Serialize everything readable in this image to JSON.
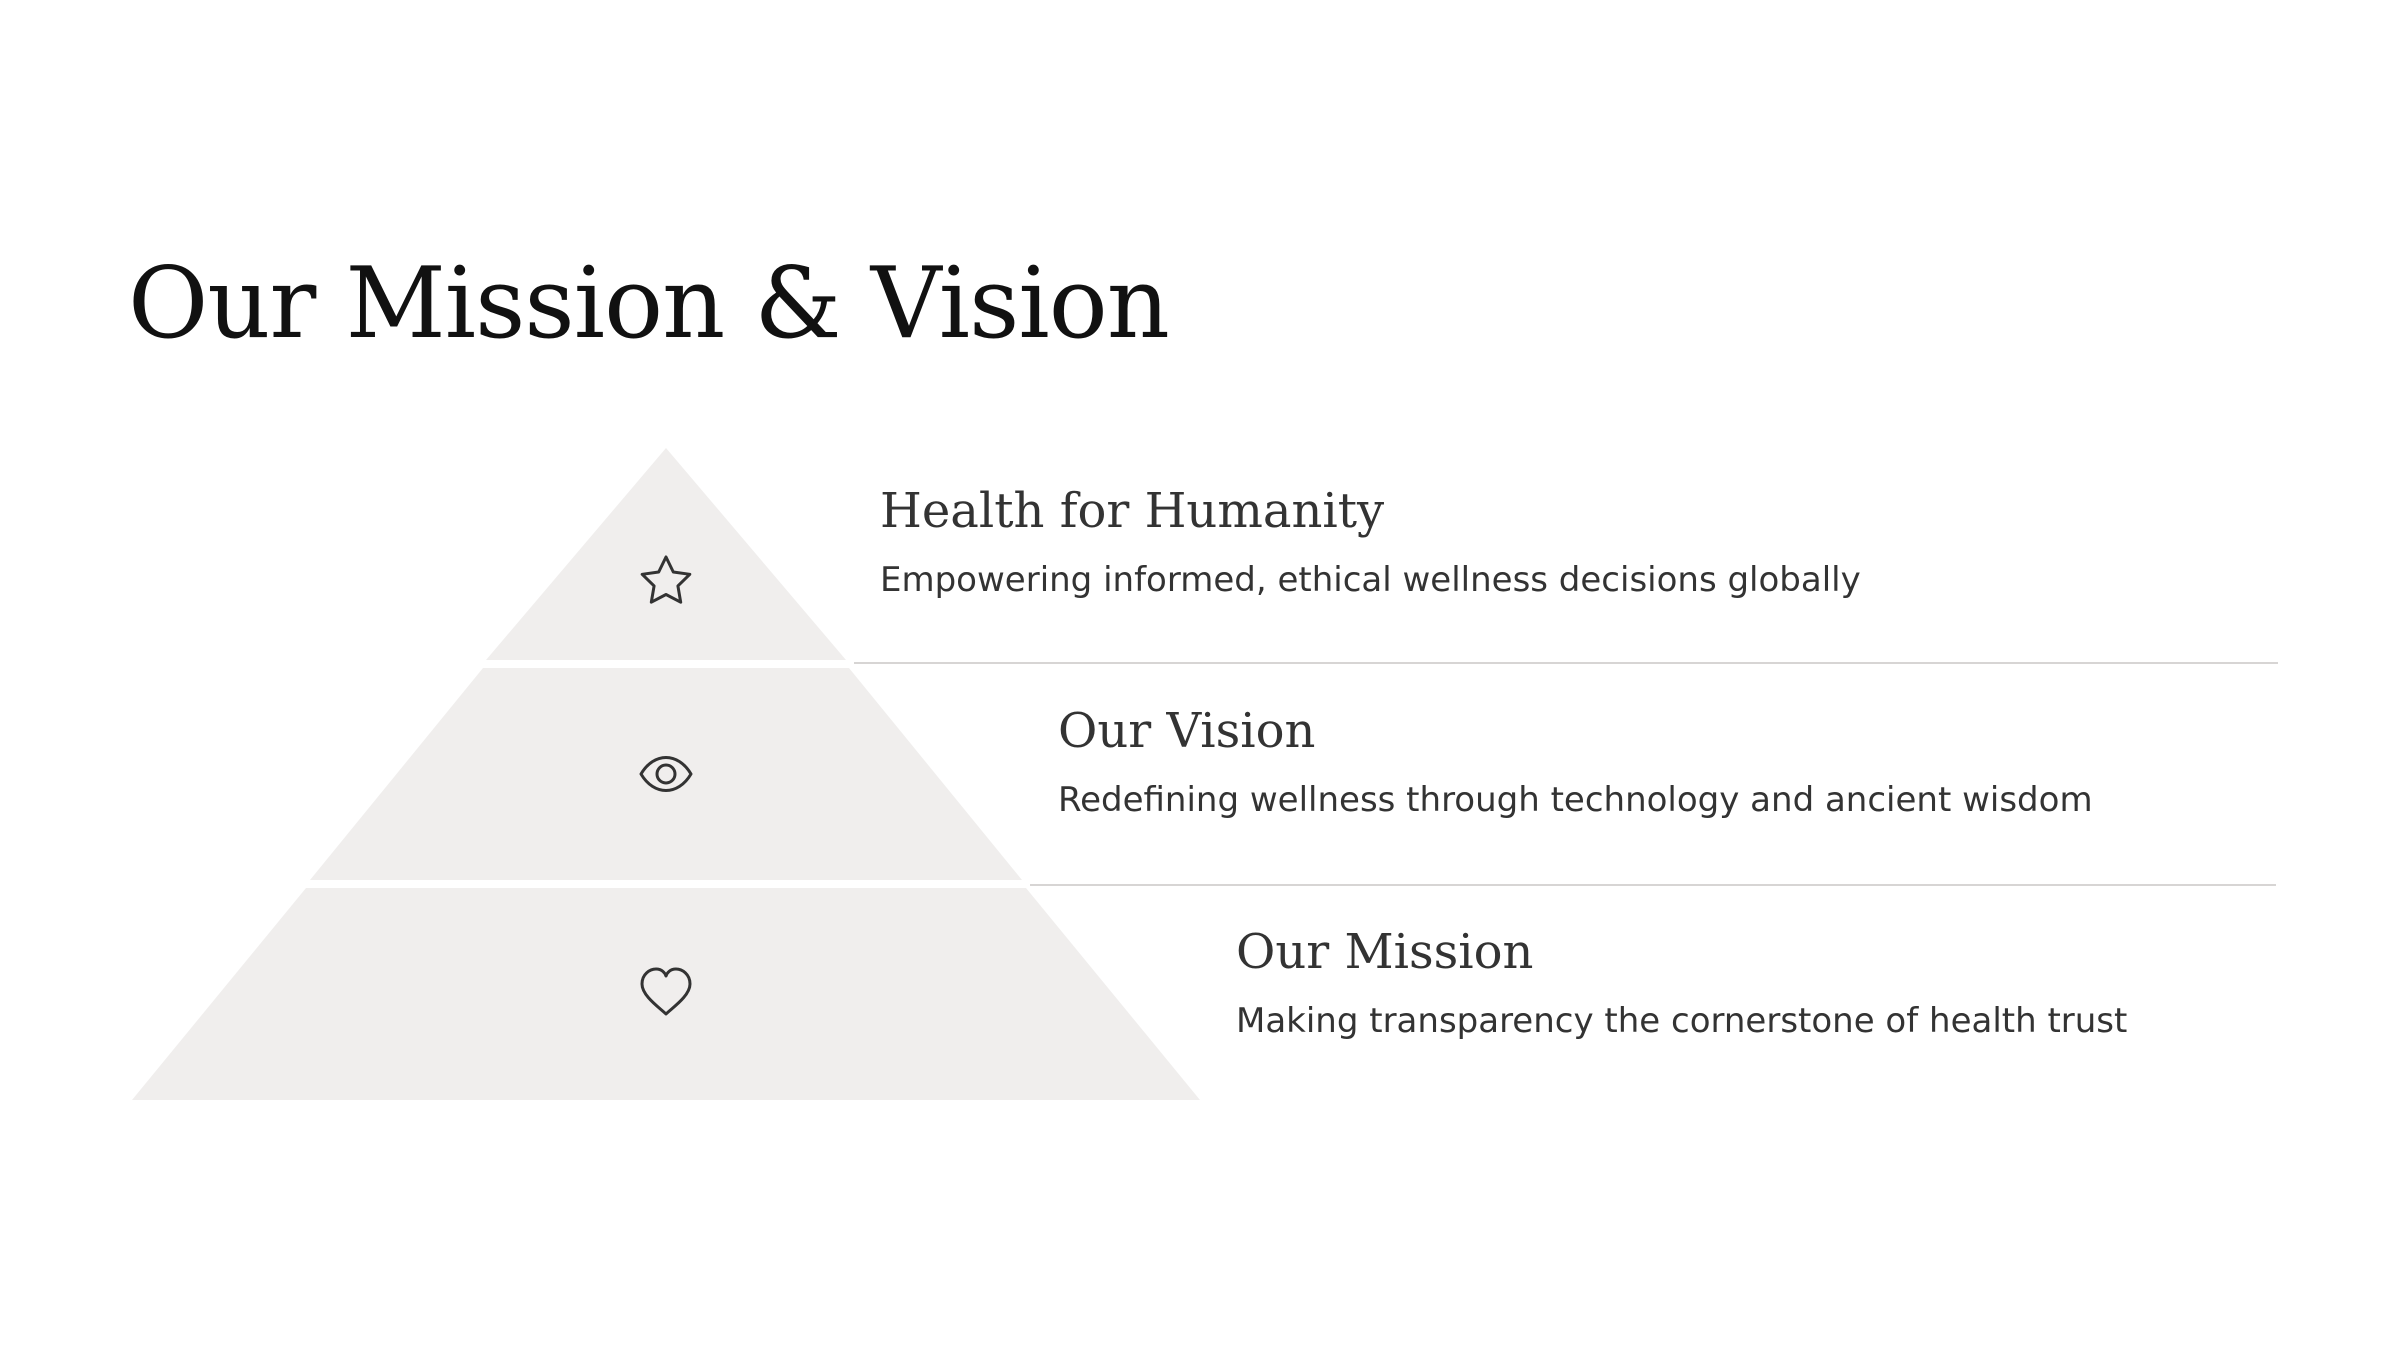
{
  "slide": {
    "title": "Our Mission & Vision",
    "colors": {
      "tier_fill": "#f0eeed",
      "text": "#333333",
      "title": "#111111",
      "divider": "#d7d5d4"
    },
    "tiers": [
      {
        "heading": "Health for Humanity",
        "description": "Empowering informed, ethical wellness decisions globally",
        "icon": "star-icon"
      },
      {
        "heading": "Our Vision",
        "description": "Redefining wellness through technology and ancient wisdom",
        "icon": "eye-icon"
      },
      {
        "heading": "Our Mission",
        "description": "Making transparency the cornerstone of health trust",
        "icon": "heart-icon"
      }
    ]
  }
}
